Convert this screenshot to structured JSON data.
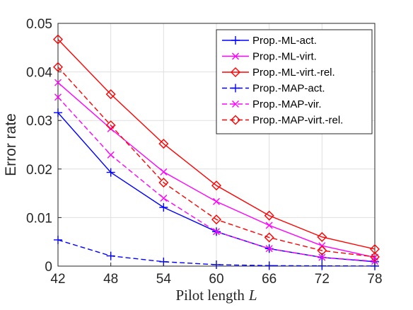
{
  "chart_data": {
    "type": "line",
    "xlabel": "Pilot length",
    "xlabel_var": "L",
    "ylabel": "Error rate",
    "x": [
      42,
      48,
      54,
      60,
      66,
      72,
      78
    ],
    "xlim": [
      42,
      78
    ],
    "ylim": [
      0,
      0.05
    ],
    "xticks": [
      "42",
      "48",
      "54",
      "60",
      "66",
      "72",
      "78"
    ],
    "yticks": [
      "0",
      "0.01",
      "0.02",
      "0.03",
      "0.04",
      "0.05"
    ],
    "grid": true,
    "legend_position": "top-right",
    "series": [
      {
        "name": "Prop.-ML-act.",
        "values": [
          0.0316,
          0.0193,
          0.0121,
          0.0071,
          0.0036,
          0.0018,
          0.0009
        ],
        "color": "#0000ff",
        "dash": "solid",
        "marker": "plus"
      },
      {
        "name": "Prop.-ML-virt.",
        "values": [
          0.0378,
          0.0283,
          0.0194,
          0.0133,
          0.0084,
          0.0042,
          0.0018
        ],
        "color": "#ff00ff",
        "dash": "solid",
        "marker": "x"
      },
      {
        "name": "Prop.-ML-virt.-rel.",
        "values": [
          0.0467,
          0.0354,
          0.0252,
          0.0166,
          0.0104,
          0.006,
          0.0035
        ],
        "color": "#ff0000",
        "dash": "solid",
        "marker": "diamond"
      },
      {
        "name": "Prop.-MAP-act.",
        "values": [
          0.0054,
          0.0021,
          0.0009,
          0.0003,
          0.0001,
          5e-05,
          2e-05
        ],
        "color": "#0000ff",
        "dash": "dashed",
        "marker": "plus"
      },
      {
        "name": "Prop.-MAP-vir.",
        "values": [
          0.0348,
          0.0229,
          0.014,
          0.0071,
          0.0036,
          0.0018,
          0.001
        ],
        "color": "#ff00ff",
        "dash": "dashed",
        "marker": "x"
      },
      {
        "name": "Prop.-MAP-virt.-rel.",
        "values": [
          0.041,
          0.029,
          0.0172,
          0.0096,
          0.0059,
          0.0032,
          0.0019
        ],
        "color": "#ff0000",
        "dash": "dashed",
        "marker": "diamond"
      }
    ]
  }
}
